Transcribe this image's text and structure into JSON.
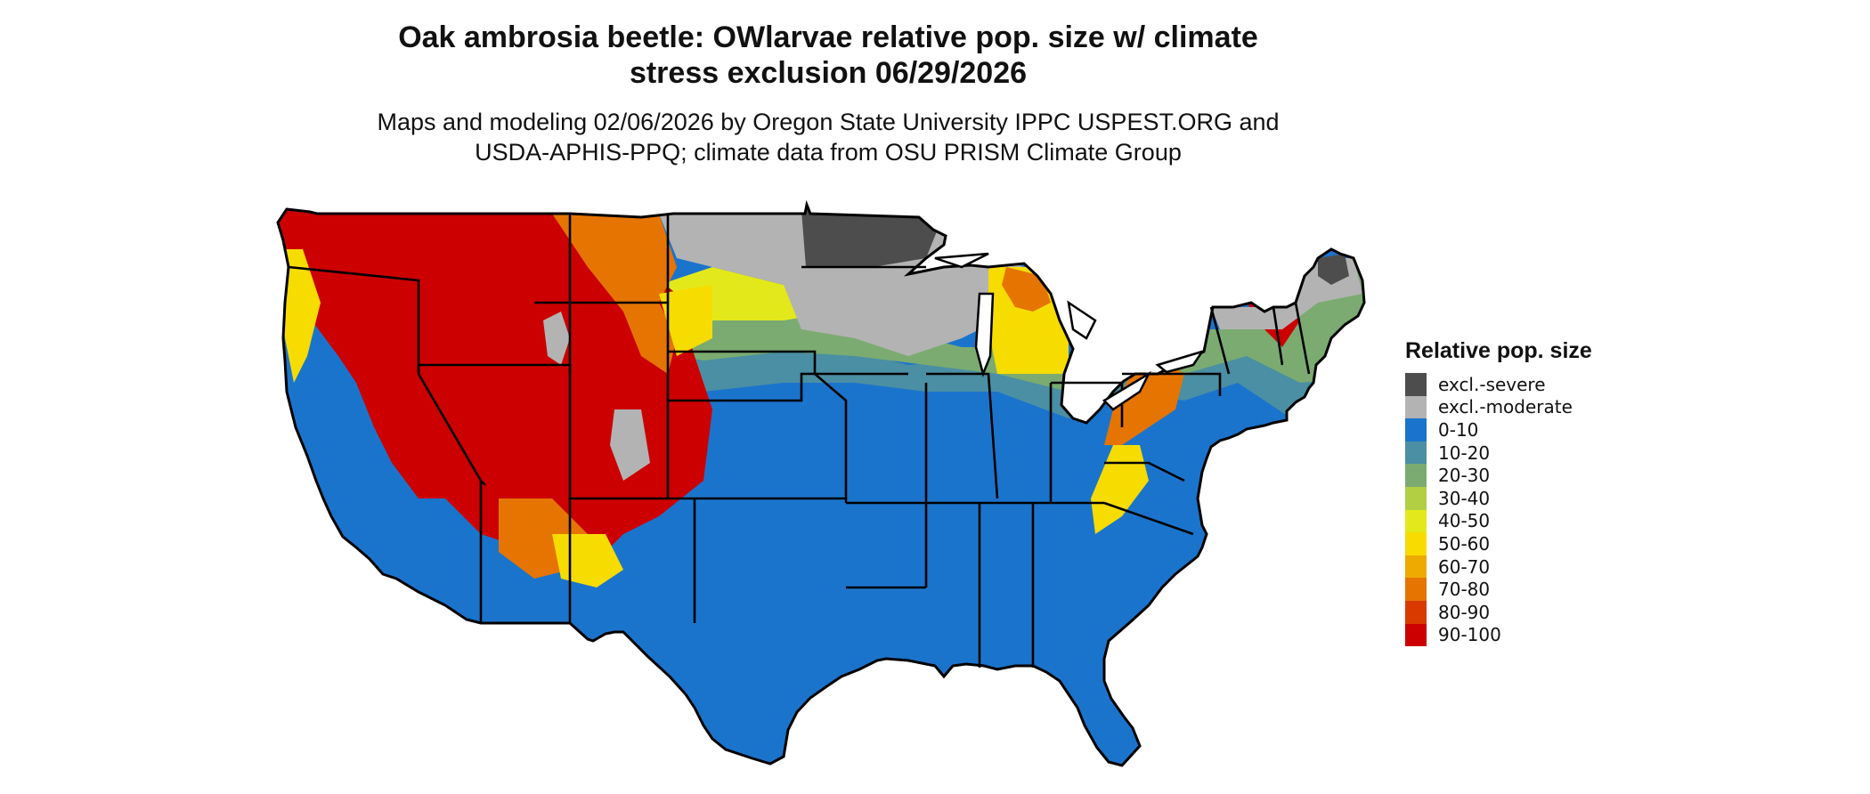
{
  "title": {
    "line1": "Oak ambrosia beetle: OWlarvae relative pop. size w/ climate",
    "line2": "stress exclusion 06/29/2026"
  },
  "subtitle": {
    "line1": "Maps and modeling 02/06/2026 by Oregon State University IPPC USPEST.ORG and",
    "line2": "USDA-APHIS-PPQ; climate data from OSU PRISM Climate Group"
  },
  "legend": {
    "title": "Relative pop. size",
    "items": [
      {
        "label": "excl.-severe",
        "color": "#4d4d4d"
      },
      {
        "label": "excl.-moderate",
        "color": "#b3b3b3"
      },
      {
        "label": "0-10",
        "color": "#1b74cc"
      },
      {
        "label": "10-20",
        "color": "#4a8fa3"
      },
      {
        "label": "20-30",
        "color": "#7bab71"
      },
      {
        "label": "30-40",
        "color": "#b2cf43"
      },
      {
        "label": "40-50",
        "color": "#e3e81a"
      },
      {
        "label": "50-60",
        "color": "#f7dc00"
      },
      {
        "label": "60-70",
        "color": "#eeaa00"
      },
      {
        "label": "70-80",
        "color": "#e57500"
      },
      {
        "label": "80-90",
        "color": "#d83a00"
      },
      {
        "label": "90-100",
        "color": "#cc0000"
      }
    ]
  },
  "map": {
    "region": "Contiguous United States",
    "regions_by_class": {
      "excl.-severe": [
        "northern Minnesota",
        "Maine highlands"
      ],
      "excl.-moderate": [
        "North Dakota",
        "South Dakota (east)",
        "Minnesota (south)",
        "Wisconsin",
        "Upper Michigan",
        "northern New York",
        "Vermont",
        "New Hampshire",
        "Maine",
        "Rocky Mountain peaks"
      ],
      "0-10": [
        "Gulf states",
        "Southeast",
        "southern Plains",
        "Midwest (south)",
        "California coast",
        "Arizona",
        "Texas",
        "Florida"
      ],
      "10-20": [
        "Nebraska (north)",
        "Iowa (north)",
        "Illinois (north)",
        "Ohio"
      ],
      "20-30": [
        "Wisconsin (south)",
        "Michigan (south)",
        "Pennsylvania (west)",
        "New York (south)"
      ],
      "50-60": [
        "South Dakota (west)",
        "Michigan lower peninsula",
        "Appalachians"
      ],
      "70-80": [
        "Montana (east)",
        "Wyoming (east)",
        "northern Michigan"
      ],
      "90-100": [
        "Pacific Northwest interior",
        "Idaho",
        "Montana (west)",
        "Wyoming",
        "Utah",
        "Colorado",
        "Nevada",
        "Sierra Nevada"
      ]
    }
  }
}
